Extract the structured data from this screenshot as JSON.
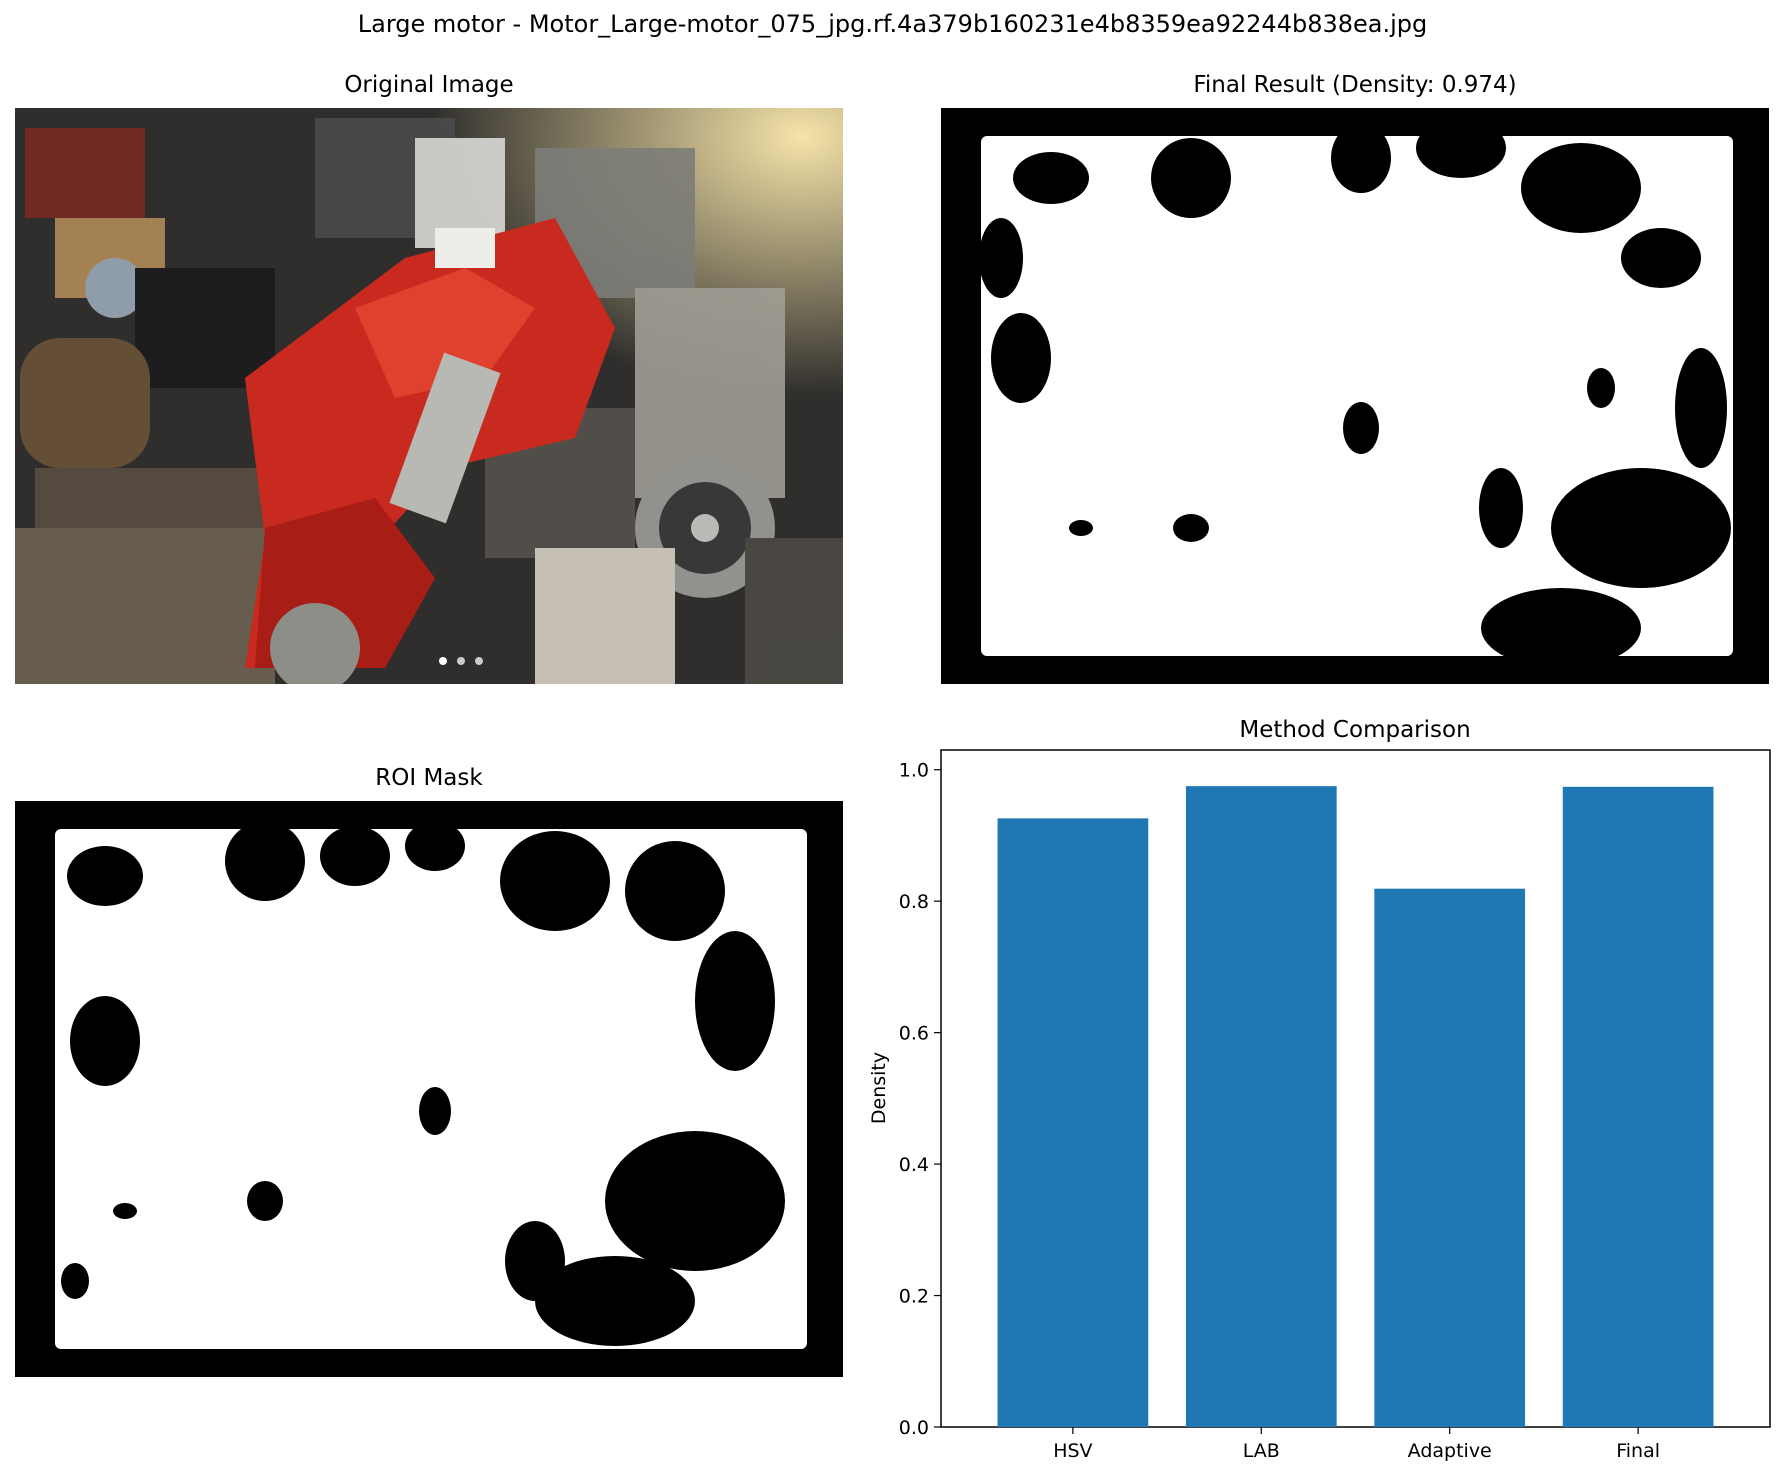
{
  "figure": {
    "title": "Large motor - Motor_Large-motor_075_jpg.rf.4a379b160231e4b8359ea92244b838ea.jpg"
  },
  "panels": {
    "original": {
      "title": "Original Image"
    },
    "final": {
      "title": "Final Result (Density: 0.974)"
    },
    "roi": {
      "title": "ROI Mask"
    }
  },
  "chart_data": {
    "type": "bar",
    "title": "Method Comparison",
    "categories": [
      "HSV",
      "LAB",
      "Adaptive",
      "Final"
    ],
    "values": [
      0.926,
      0.975,
      0.819,
      0.974
    ],
    "xlabel": "",
    "ylabel": "Density",
    "ylim": [
      0,
      1.03
    ],
    "yticks": [
      "0.0",
      "0.2",
      "0.4",
      "0.6",
      "0.8",
      "1.0"
    ],
    "grid": false,
    "bar_color": "#1f77b4"
  }
}
